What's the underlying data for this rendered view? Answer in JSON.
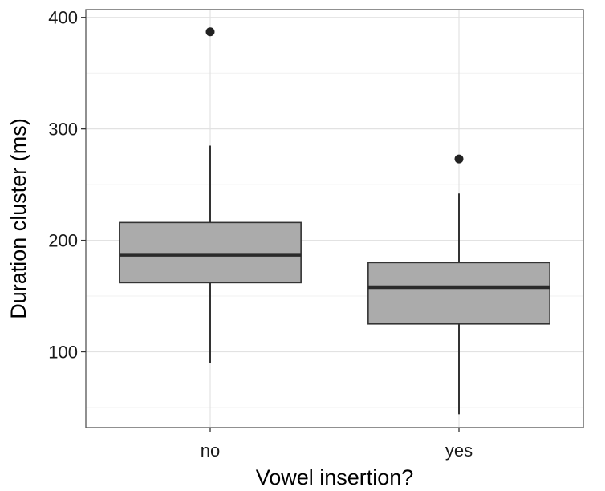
{
  "chart_data": {
    "type": "boxplot",
    "xlabel": "Vowel insertion?",
    "ylabel": "Duration cluster (ms)",
    "categories": [
      "no",
      "yes"
    ],
    "boxes": [
      {
        "category": "no",
        "whisker_low": 90,
        "q1": 162,
        "median": 187,
        "q3": 216,
        "whisker_high": 285,
        "outliers": [
          387
        ]
      },
      {
        "category": "yes",
        "whisker_low": 44,
        "q1": 125,
        "median": 158,
        "q3": 180,
        "whisker_high": 242,
        "outliers": [
          273
        ]
      }
    ],
    "ylim": [
      32,
      407
    ],
    "yticks": [
      100,
      200,
      300,
      400
    ],
    "grid": true,
    "box_fill": "#ababab",
    "box_stroke": "#333333",
    "point_color": "#222222"
  }
}
